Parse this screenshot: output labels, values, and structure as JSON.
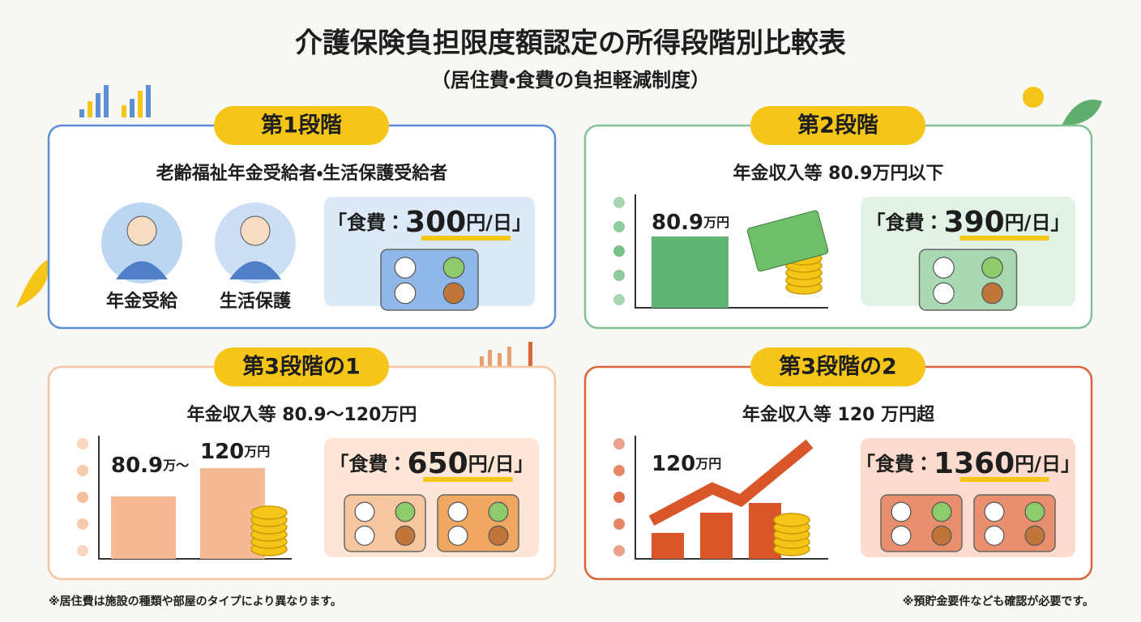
{
  "header": {
    "title": "介護保険負担限度額認定の所得段階別比較表",
    "subtitle": "（居住費・食費の負担軽減制度）"
  },
  "cards": [
    {
      "badge": "第1段階",
      "description": "老齢福祉年金受給者・生活保護受給者",
      "icon_labels": [
        "年金受給",
        "生活保護"
      ],
      "food": {
        "prefix": "「食費：",
        "amount": 300,
        "suffix": "円/日」"
      }
    },
    {
      "badge": "第2段階",
      "description": "年金収入等 80.9万円以下",
      "chart_labels": [
        {
          "number": "80.9",
          "unit": "万円"
        }
      ],
      "food": {
        "prefix": "「食費：",
        "amount": 390,
        "suffix": "円/日」"
      }
    },
    {
      "badge": "第3段階の1",
      "description": "年金収入等 80.9～120万円",
      "chart_labels": [
        {
          "number": "80.9",
          "unit": "万～"
        },
        {
          "number": "120",
          "unit": "万円"
        }
      ],
      "food": {
        "prefix": "「食費：",
        "amount": 650,
        "suffix": "円/日」"
      }
    },
    {
      "badge": "第3段階の2",
      "description": "年金収入等 120 万円超",
      "chart_labels": [
        {
          "number": "120",
          "unit": "万円"
        }
      ],
      "food": {
        "prefix": "「食費：",
        "amount": 1360,
        "suffix": "円/日」"
      }
    }
  ],
  "footer": {
    "left": "※居住費は施設の種類や部屋のタイプにより異なります。",
    "right": "※預貯金要件なども確認が必要です。"
  }
}
